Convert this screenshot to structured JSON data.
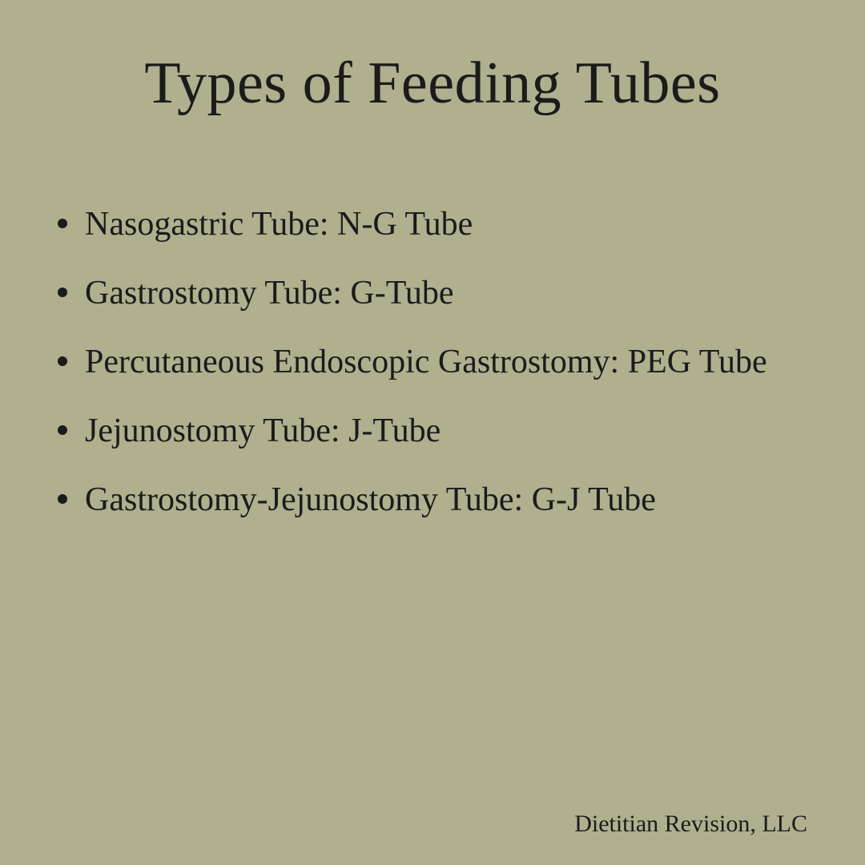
{
  "title": "Types of Feeding Tubes",
  "items": [
    "Nasogastric Tube: N-G Tube",
    "Gastrostomy Tube: G-Tube",
    "Percutaneous Endoscopic Gastrostomy: PEG Tube",
    "Jejunostomy Tube: J-Tube",
    "Gastrostomy-Jejunostomy Tube: G-J Tube"
  ],
  "footer": "Dietitian Revision, LLC",
  "style": {
    "background_color": "#b0af8e",
    "text_color": "#1b1b1b",
    "title_fontsize": 74,
    "item_fontsize": 42,
    "footer_fontsize": 30,
    "font_family": "Georgia, serif",
    "line_height": 2.05,
    "bullet_size": 12
  }
}
